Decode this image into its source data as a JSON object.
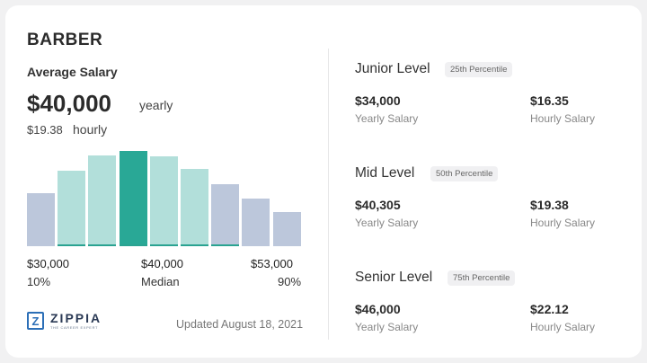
{
  "job_title": "BARBER",
  "average": {
    "label": "Average Salary",
    "yearly": "$40,000",
    "yearly_unit": "yearly",
    "hourly": "$19.38",
    "hourly_unit": "hourly"
  },
  "chart_data": {
    "type": "bar",
    "categories": [
      "1",
      "2",
      "3",
      "4",
      "5",
      "6",
      "7",
      "8",
      "9"
    ],
    "values": [
      56,
      79,
      95,
      100,
      94,
      81,
      65,
      50,
      36
    ],
    "colors": [
      "#bcc7db",
      "#b2dfda",
      "#b2dfda",
      "#29a896",
      "#b2dfda",
      "#b2dfda",
      "#bcc7db",
      "#bcc7db",
      "#bcc7db"
    ],
    "title": "",
    "xlabel": "",
    "ylabel": ""
  },
  "scale": {
    "low": {
      "value": "$30,000",
      "label": "10%"
    },
    "mid": {
      "value": "$40,000",
      "label": "Median"
    },
    "high": {
      "value": "$53,000",
      "label": "90%"
    }
  },
  "brand": {
    "name": "ZIPPIA",
    "tagline": "THE CAREER EXPERT",
    "mark": "Z"
  },
  "updated": "Updated August 18, 2021",
  "levels": [
    {
      "name": "Junior Level",
      "percentile": "25th Percentile",
      "yearly": "$34,000",
      "yearly_label": "Yearly Salary",
      "hourly": "$16.35",
      "hourly_label": "Hourly Salary"
    },
    {
      "name": "Mid Level",
      "percentile": "50th Percentile",
      "yearly": "$40,305",
      "yearly_label": "Yearly Salary",
      "hourly": "$19.38",
      "hourly_label": "Hourly Salary"
    },
    {
      "name": "Senior Level",
      "percentile": "75th Percentile",
      "yearly": "$46,000",
      "yearly_label": "Yearly Salary",
      "hourly": "$22.12",
      "hourly_label": "Hourly Salary"
    }
  ],
  "colors": {
    "accent": "#29a896",
    "brand": "#2c6fb7"
  }
}
